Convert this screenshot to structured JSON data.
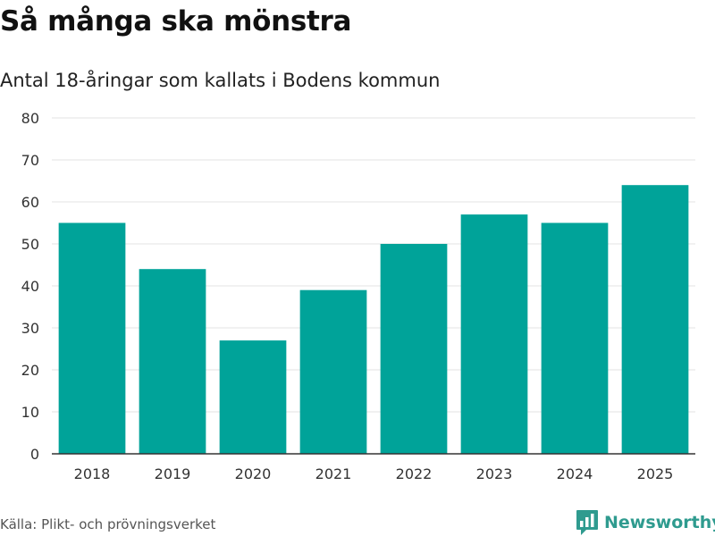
{
  "header": {
    "title": "Så många ska mönstra",
    "subtitle": "Antal 18-åringar som kallats i Bodens kommun"
  },
  "footer": {
    "source": "Källa: Plikt- och prövningsverket",
    "brand": "Newsworthy"
  },
  "colors": {
    "bar": "#00a399",
    "grid": "#e3e3e3",
    "axis": "#333333",
    "brand": "#2f9b8f"
  },
  "icons": {
    "brand_logo": "bar-chart-speech-bubble-icon"
  },
  "chart_data": {
    "type": "bar",
    "title": "Så många ska mönstra",
    "subtitle": "Antal 18-åringar som kallats i Bodens kommun",
    "categories": [
      "2018",
      "2019",
      "2020",
      "2021",
      "2022",
      "2023",
      "2024",
      "2025"
    ],
    "values": [
      55,
      44,
      27,
      39,
      50,
      57,
      55,
      64
    ],
    "ylim": [
      0,
      80
    ],
    "yticks": [
      0,
      10,
      20,
      30,
      40,
      50,
      60,
      70,
      80
    ],
    "xlabel": "",
    "ylabel": "",
    "grid": true,
    "legend": "none"
  }
}
